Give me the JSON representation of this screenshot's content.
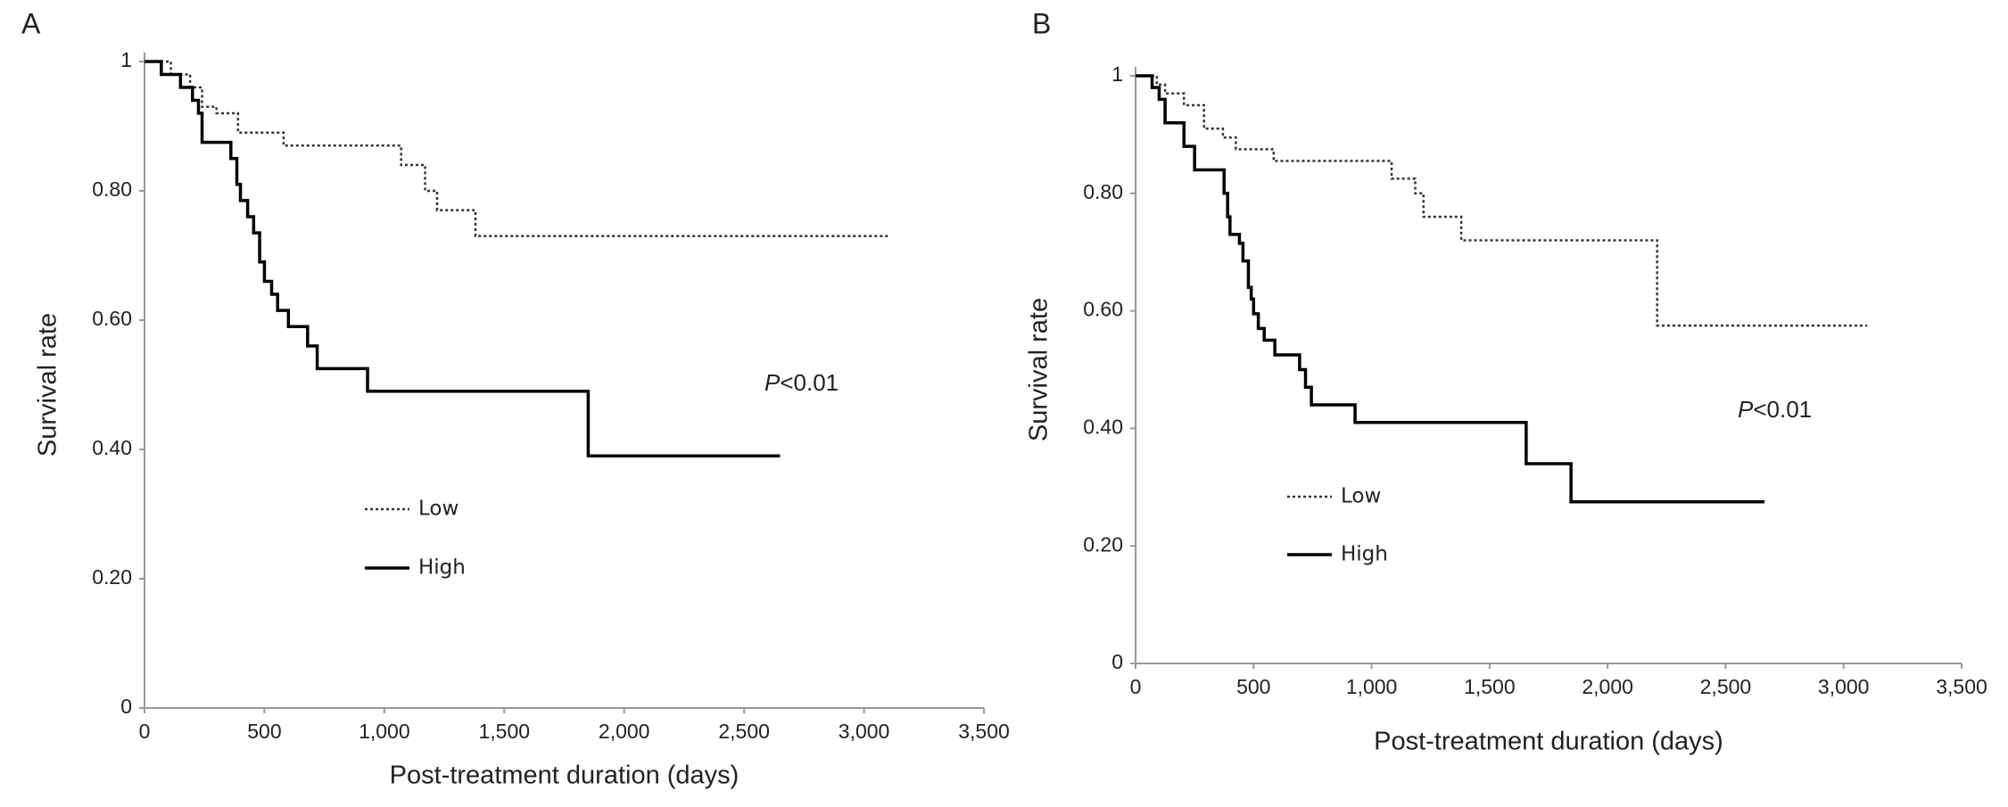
{
  "chart_data": [
    {
      "type": "step",
      "panel": "A",
      "xlabel": "Post-treatment duration (days)",
      "ylabel": "Survival rate",
      "annotation": {
        "italic": "P",
        "text": "<0.01"
      },
      "xlim": [
        0,
        3500
      ],
      "ylim": [
        0,
        1
      ],
      "xticks": [
        0,
        500,
        {
          "value": 1000,
          "label": "1,000"
        },
        {
          "value": 1500,
          "label": "1,500"
        },
        {
          "value": 2000,
          "label": "2,000"
        },
        {
          "value": 2500,
          "label": "2,500"
        },
        {
          "value": 3000,
          "label": "3,000"
        },
        {
          "value": 3500,
          "label": "3,500"
        }
      ],
      "yticks": [
        0,
        {
          "value": 0.2,
          "label": "0.20"
        },
        {
          "value": 0.4,
          "label": "0.40"
        },
        {
          "value": 0.6,
          "label": "0.60"
        },
        {
          "value": 0.8,
          "label": "0.80"
        },
        1
      ],
      "series": [
        {
          "name": "Low",
          "color": "#333333",
          "linestyle": "dotted",
          "x": [
            0,
            110,
            190,
            240,
            300,
            390,
            580,
            1070,
            1170,
            1220,
            1380,
            3100
          ],
          "values": [
            1,
            0.98,
            0.96,
            0.93,
            0.92,
            0.89,
            0.87,
            0.84,
            0.8,
            0.77,
            0.73,
            0.73
          ]
        },
        {
          "name": "High",
          "color": "#000000",
          "linestyle": "solid",
          "x": [
            0,
            70,
            150,
            200,
            225,
            240,
            360,
            385,
            400,
            430,
            455,
            480,
            500,
            530,
            555,
            600,
            680,
            720,
            930,
            1850,
            2650
          ],
          "values": [
            1,
            0.98,
            0.96,
            0.94,
            0.92,
            0.875,
            0.85,
            0.81,
            0.785,
            0.76,
            0.735,
            0.69,
            0.66,
            0.64,
            0.615,
            0.59,
            0.56,
            0.525,
            0.49,
            0.39,
            0.39
          ]
        }
      ]
    },
    {
      "type": "step",
      "panel": "B",
      "xlabel": "Post-treatment duration (days)",
      "ylabel": "Survival rate",
      "annotation": {
        "italic": "P",
        "text": "<0.01"
      },
      "xlim": [
        0,
        3500
      ],
      "ylim": [
        0,
        1
      ],
      "xticks": [
        0,
        500,
        {
          "value": 1000,
          "label": "1,000"
        },
        {
          "value": 1500,
          "label": "1,500"
        },
        {
          "value": 2000,
          "label": "2,000"
        },
        {
          "value": 2500,
          "label": "2,500"
        },
        {
          "value": 3000,
          "label": "3,000"
        },
        {
          "value": 3500,
          "label": "3,500"
        }
      ],
      "yticks": [
        0,
        {
          "value": 0.2,
          "label": "0.20"
        },
        {
          "value": 0.4,
          "label": "0.40"
        },
        {
          "value": 0.6,
          "label": "0.60"
        },
        {
          "value": 0.8,
          "label": "0.80"
        },
        1
      ],
      "series": [
        {
          "name": "Low",
          "color": "#333333",
          "linestyle": "dotted",
          "x": [
            0,
            90,
            125,
            205,
            290,
            370,
            425,
            585,
            1085,
            1185,
            1220,
            1380,
            2210,
            3100
          ],
          "values": [
            1,
            0.985,
            0.97,
            0.95,
            0.91,
            0.895,
            0.875,
            0.855,
            0.825,
            0.8,
            0.76,
            0.72,
            0.575,
            0.575
          ]
        },
        {
          "name": "High",
          "color": "#000000",
          "linestyle": "solid",
          "x": [
            0,
            70,
            100,
            125,
            205,
            250,
            375,
            390,
            400,
            440,
            455,
            478,
            490,
            500,
            520,
            545,
            590,
            695,
            720,
            745,
            930,
            1655,
            1845,
            2665
          ],
          "values": [
            1,
            0.98,
            0.96,
            0.92,
            0.88,
            0.84,
            0.8,
            0.76,
            0.73,
            0.715,
            0.685,
            0.64,
            0.62,
            0.595,
            0.57,
            0.55,
            0.525,
            0.5,
            0.47,
            0.44,
            0.41,
            0.34,
            0.275,
            0.275
          ]
        }
      ]
    }
  ]
}
